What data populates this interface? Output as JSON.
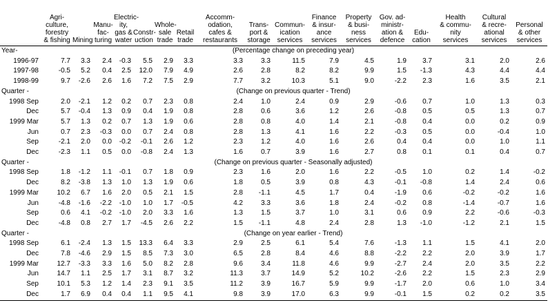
{
  "columns": [
    [
      "Agri-",
      "culture,",
      "forestry",
      "& fishing"
    ],
    [
      "Mining"
    ],
    [
      "Manu-",
      "fac-",
      "turing"
    ],
    [
      "Electric-",
      "ity, gas &",
      "water"
    ],
    [
      "Constr-",
      "uction"
    ],
    [
      "Whole-",
      "sale",
      "trade"
    ],
    [
      "Retail",
      "trade"
    ],
    [
      "Accomm-",
      "odation,",
      "cafes &",
      "restaurants"
    ],
    [
      "Trans-",
      "port &",
      "storage"
    ],
    [
      "Commun-",
      "ication",
      "services"
    ],
    [
      "Finance",
      "& insur-",
      "ance",
      "services"
    ],
    [
      "Property",
      "& busi-",
      "ness",
      "services"
    ],
    [
      "Gov. ad-",
      "ministr-",
      "ation &",
      "defence"
    ],
    [
      "Edu-",
      "cation"
    ],
    [
      "Health",
      "& commu-",
      "nity",
      "services"
    ],
    [
      "Cultural",
      "& recre-",
      "ational",
      "services"
    ],
    [
      "Personal",
      "& other",
      "services"
    ]
  ],
  "sections": [
    {
      "label": "Year-",
      "note": "(Percentage change on preceding year)",
      "rows": [
        {
          "label": "1996-97",
          "values": [
            "7.7",
            "3.3",
            "2.4",
            "-0.3",
            "5.5",
            "2.9",
            "3.3",
            "3.3",
            "3.3",
            "11.5",
            "7.9",
            "4.5",
            "1.9",
            "3.7",
            "3.1",
            "2.0",
            "2.6"
          ]
        },
        {
          "label": "1997-98",
          "values": [
            "-0.5",
            "5.2",
            "0.4",
            "2.5",
            "12.0",
            "7.9",
            "4.9",
            "2.6",
            "2.8",
            "8.2",
            "8.2",
            "9.9",
            "1.5",
            "-1.3",
            "4.3",
            "4.4",
            "4.4"
          ]
        },
        {
          "label": "1998-99",
          "values": [
            "9.7",
            "-2.6",
            "2.6",
            "1.6",
            "7.2",
            "7.5",
            "2.9",
            "7.7",
            "3.2",
            "10.3",
            "5.1",
            "9.0",
            "-2.2",
            "2.3",
            "1.6",
            "3.5",
            "2.1"
          ]
        }
      ]
    },
    {
      "label": "Quarter -",
      "note": "(Change on previous quarter - Trend)",
      "rows": [
        {
          "label": "1998 Sep",
          "values": [
            "2.0",
            "-2.1",
            "1.2",
            "0.2",
            "0.7",
            "2.3",
            "0.8",
            "2.4",
            "1.0",
            "2.4",
            "0.9",
            "2.9",
            "-0.6",
            "0.7",
            "1.0",
            "1.3",
            "0.3"
          ]
        },
        {
          "label": "Dec",
          "values": [
            "5.7",
            "-0.4",
            "1.3",
            "0.9",
            "0.4",
            "1.9",
            "0.8",
            "2.8",
            "0.6",
            "3.6",
            "1.2",
            "2.6",
            "-0.8",
            "0.5",
            "0.5",
            "1.3",
            "0.7"
          ]
        },
        {
          "label": "1999 Mar",
          "values": [
            "5.7",
            "1.3",
            "0.2",
            "0.7",
            "1.3",
            "1.9",
            "0.6",
            "2.8",
            "0.8",
            "4.0",
            "1.4",
            "2.1",
            "-0.8",
            "0.4",
            "0.0",
            "0.2",
            "0.9"
          ]
        },
        {
          "label": "Jun",
          "values": [
            "0.7",
            "2.3",
            "-0.3",
            "0.0",
            "0.7",
            "2.4",
            "0.8",
            "2.8",
            "1.3",
            "4.1",
            "1.6",
            "2.2",
            "-0.3",
            "0.5",
            "0.0",
            "-0.4",
            "1.0"
          ]
        },
        {
          "label": "Sep",
          "values": [
            "-2.1",
            "2.0",
            "0.0",
            "-0.2",
            "-0.1",
            "2.6",
            "1.2",
            "2.3",
            "1.2",
            "4.0",
            "1.6",
            "2.6",
            "0.4",
            "0.4",
            "0.0",
            "1.0",
            "1.1"
          ]
        },
        {
          "label": "Dec",
          "values": [
            "-2.3",
            "1.1",
            "0.5",
            "0.0",
            "-0.8",
            "2.4",
            "1.3",
            "1.6",
            "0.7",
            "3.9",
            "1.6",
            "2.7",
            "0.8",
            "0.1",
            "0.1",
            "0.4",
            "0.7"
          ]
        }
      ]
    },
    {
      "label": "Quarter -",
      "note": "(Change on previous quarter - Seasonally adjusted)",
      "rows": [
        {
          "label": "1998 Sep",
          "values": [
            "1.8",
            "-1.2",
            "1.1",
            "-0.1",
            "0.7",
            "1.8",
            "0.9",
            "2.3",
            "1.6",
            "2.0",
            "1.6",
            "2.2",
            "-0.5",
            "1.0",
            "0.2",
            "1.4",
            "-0.2"
          ]
        },
        {
          "label": "Dec",
          "values": [
            "8.2",
            "-3.8",
            "1.3",
            "1.0",
            "1.3",
            "1.9",
            "0.6",
            "1.8",
            "0.5",
            "3.9",
            "0.8",
            "4.3",
            "-0.1",
            "-0.8",
            "1.4",
            "2.4",
            "0.6"
          ]
        },
        {
          "label": "1999 Mar",
          "values": [
            "10.2",
            "6.7",
            "1.6",
            "2.0",
            "0.5",
            "2.1",
            "1.5",
            "2.8",
            "-1.1",
            "4.5",
            "1.7",
            "0.4",
            "-1.9",
            "0.6",
            "-0.2",
            "-0.2",
            "1.6"
          ]
        },
        {
          "label": "Jun",
          "values": [
            "-4.8",
            "-1.6",
            "-2.2",
            "-1.0",
            "1.0",
            "1.7",
            "-0.5",
            "4.2",
            "3.3",
            "3.6",
            "1.8",
            "2.4",
            "-0.2",
            "0.8",
            "-1.4",
            "-0.7",
            "1.6"
          ]
        },
        {
          "label": "Sep",
          "values": [
            "0.6",
            "4.1",
            "-0.2",
            "-1.0",
            "2.0",
            "3.3",
            "1.6",
            "1.3",
            "1.5",
            "3.7",
            "1.0",
            "3.1",
            "0.6",
            "0.9",
            "2.2",
            "-0.6",
            "-0.3"
          ]
        },
        {
          "label": "Dec",
          "values": [
            "-4.8",
            "0.8",
            "2.7",
            "1.7",
            "-4.5",
            "2.6",
            "2.2",
            "1.5",
            "-1.1",
            "4.8",
            "2.4",
            "2.8",
            "1.3",
            "-1.0",
            "-1.2",
            "2.1",
            "1.5"
          ]
        }
      ]
    },
    {
      "label": "Quarter -",
      "note": "(Change on year earlier - Trend)",
      "rows": [
        {
          "label": "1998 Sep",
          "values": [
            "6.1",
            "-2.4",
            "1.3",
            "1.5",
            "13.3",
            "6.4",
            "3.3",
            "2.9",
            "2.5",
            "6.1",
            "5.4",
            "7.6",
            "-1.3",
            "1.1",
            "1.5",
            "4.1",
            "2.0"
          ]
        },
        {
          "label": "Dec",
          "values": [
            "7.8",
            "-4.6",
            "2.9",
            "1.5",
            "8.5",
            "7.3",
            "3.0",
            "6.5",
            "2.8",
            "8.4",
            "4.6",
            "8.8",
            "-2.2",
            "2.2",
            "2.0",
            "3.9",
            "1.7"
          ]
        },
        {
          "label": "1999 Mar",
          "values": [
            "12.7",
            "-3.3",
            "3.3",
            "1.6",
            "5.0",
            "8.2",
            "2.8",
            "9.6",
            "3.4",
            "11.8",
            "4.6",
            "9.9",
            "-2.7",
            "2.4",
            "2.0",
            "3.5",
            "2.2"
          ]
        },
        {
          "label": "Jun",
          "values": [
            "14.7",
            "1.1",
            "2.5",
            "1.7",
            "3.1",
            "8.7",
            "3.2",
            "11.3",
            "3.7",
            "14.9",
            "5.2",
            "10.2",
            "-2.6",
            "2.2",
            "1.5",
            "2.3",
            "2.9"
          ]
        },
        {
          "label": "Sep",
          "values": [
            "10.1",
            "5.3",
            "1.2",
            "1.4",
            "2.3",
            "9.1",
            "3.5",
            "11.2",
            "3.9",
            "16.7",
            "5.9",
            "9.9",
            "-1.7",
            "2.0",
            "0.6",
            "1.0",
            "3.4"
          ]
        },
        {
          "label": "Dec",
          "values": [
            "1.7",
            "6.9",
            "0.4",
            "0.4",
            "1.1",
            "9.5",
            "4.1",
            "9.8",
            "3.9",
            "17.0",
            "6.3",
            "9.9",
            "-0.1",
            "1.5",
            "0.2",
            "0.2",
            "3.5"
          ]
        }
      ]
    }
  ]
}
